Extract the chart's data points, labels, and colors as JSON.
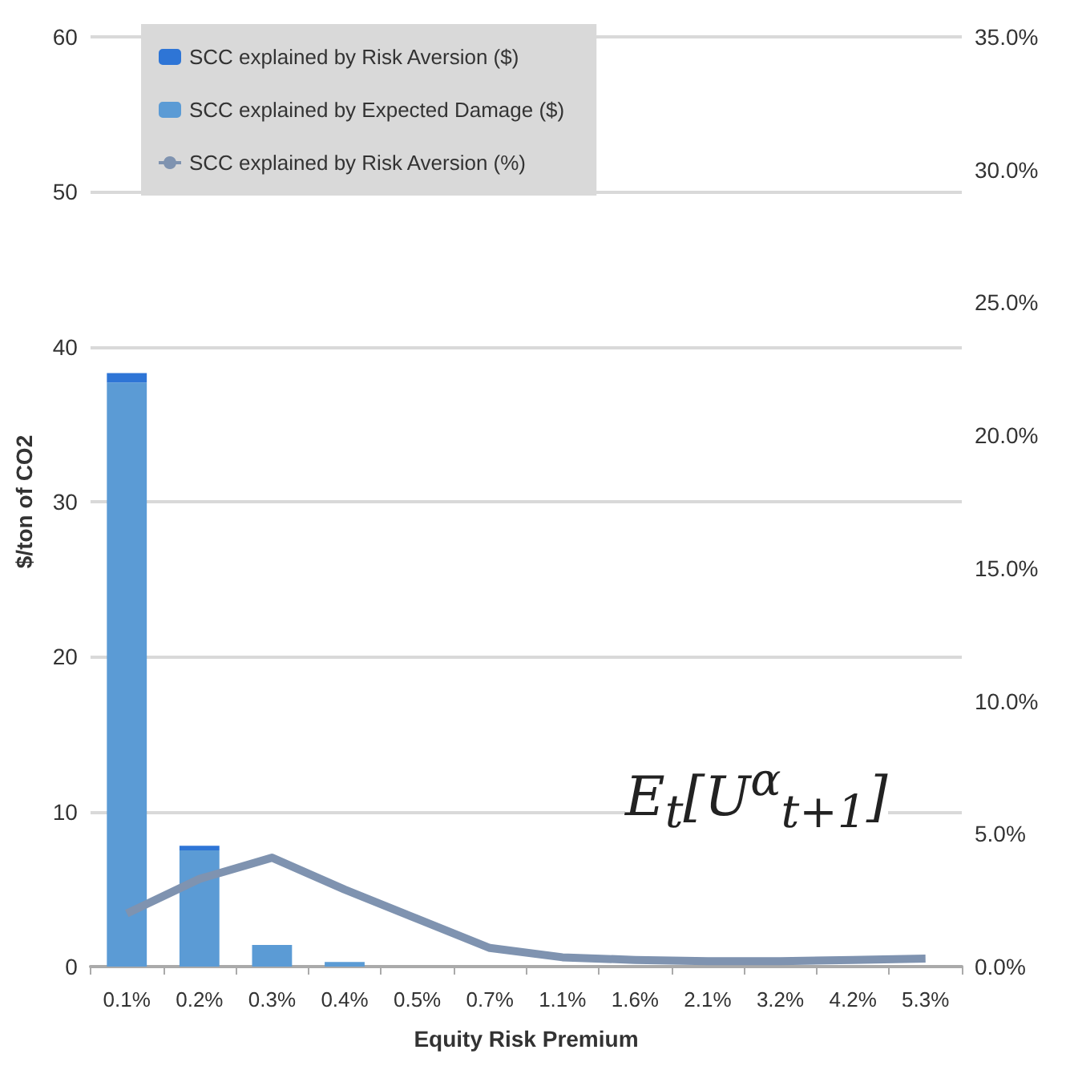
{
  "chart_data": {
    "type": "bar",
    "stacked": true,
    "xlabel": "Equity Risk Premium",
    "ylabel": "$/ton of CO2",
    "categories": [
      "0.1%",
      "0.2%",
      "0.3%",
      "0.4%",
      "0.5%",
      "0.7%",
      "1.1%",
      "1.6%",
      "2.1%",
      "3.2%",
      "4.2%",
      "5.3%"
    ],
    "series": [
      {
        "name": "SCC explained by Expected Damage ($)",
        "color": "#5b9bd5",
        "values": [
          37.7,
          7.5,
          1.4,
          0.3,
          0,
          0,
          0,
          0,
          0,
          0,
          0,
          0
        ]
      },
      {
        "name": "SCC explained by Risk Aversion ($)",
        "color": "#2e75d6",
        "values": [
          0.6,
          0.3,
          0,
          0,
          0,
          0,
          0,
          0,
          0,
          0,
          0,
          0
        ]
      },
      {
        "name": "SCC explained by Risk Aversion (%)",
        "type": "line",
        "axis": "y2",
        "color": "#7f93b0",
        "marker": "none",
        "values": [
          2.0,
          3.3,
          4.1,
          2.9,
          1.8,
          0.7,
          0.35,
          0.25,
          0.2,
          0.2,
          0.25,
          0.3
        ]
      }
    ],
    "ylim": [
      0,
      60
    ],
    "yticks": [
      0,
      10,
      20,
      30,
      40,
      50,
      60
    ],
    "y2lim": [
      0,
      35
    ],
    "y2ticks": [
      {
        "value": 0,
        "label": "0.0%"
      },
      {
        "value": 5,
        "label": "5.0%"
      },
      {
        "value": 10,
        "label": "10.0%"
      },
      {
        "value": 15,
        "label": "15.0%"
      },
      {
        "value": 20,
        "label": "20.0%"
      },
      {
        "value": 25,
        "label": "25.0%"
      },
      {
        "value": 30,
        "label": "30.0%"
      },
      {
        "value": 35,
        "label": "35.0%"
      }
    ],
    "grid": "y",
    "legend": "top left",
    "annotations": [
      "E$_{t}$[U$^{α}$$_{t+1}$]"
    ]
  }
}
